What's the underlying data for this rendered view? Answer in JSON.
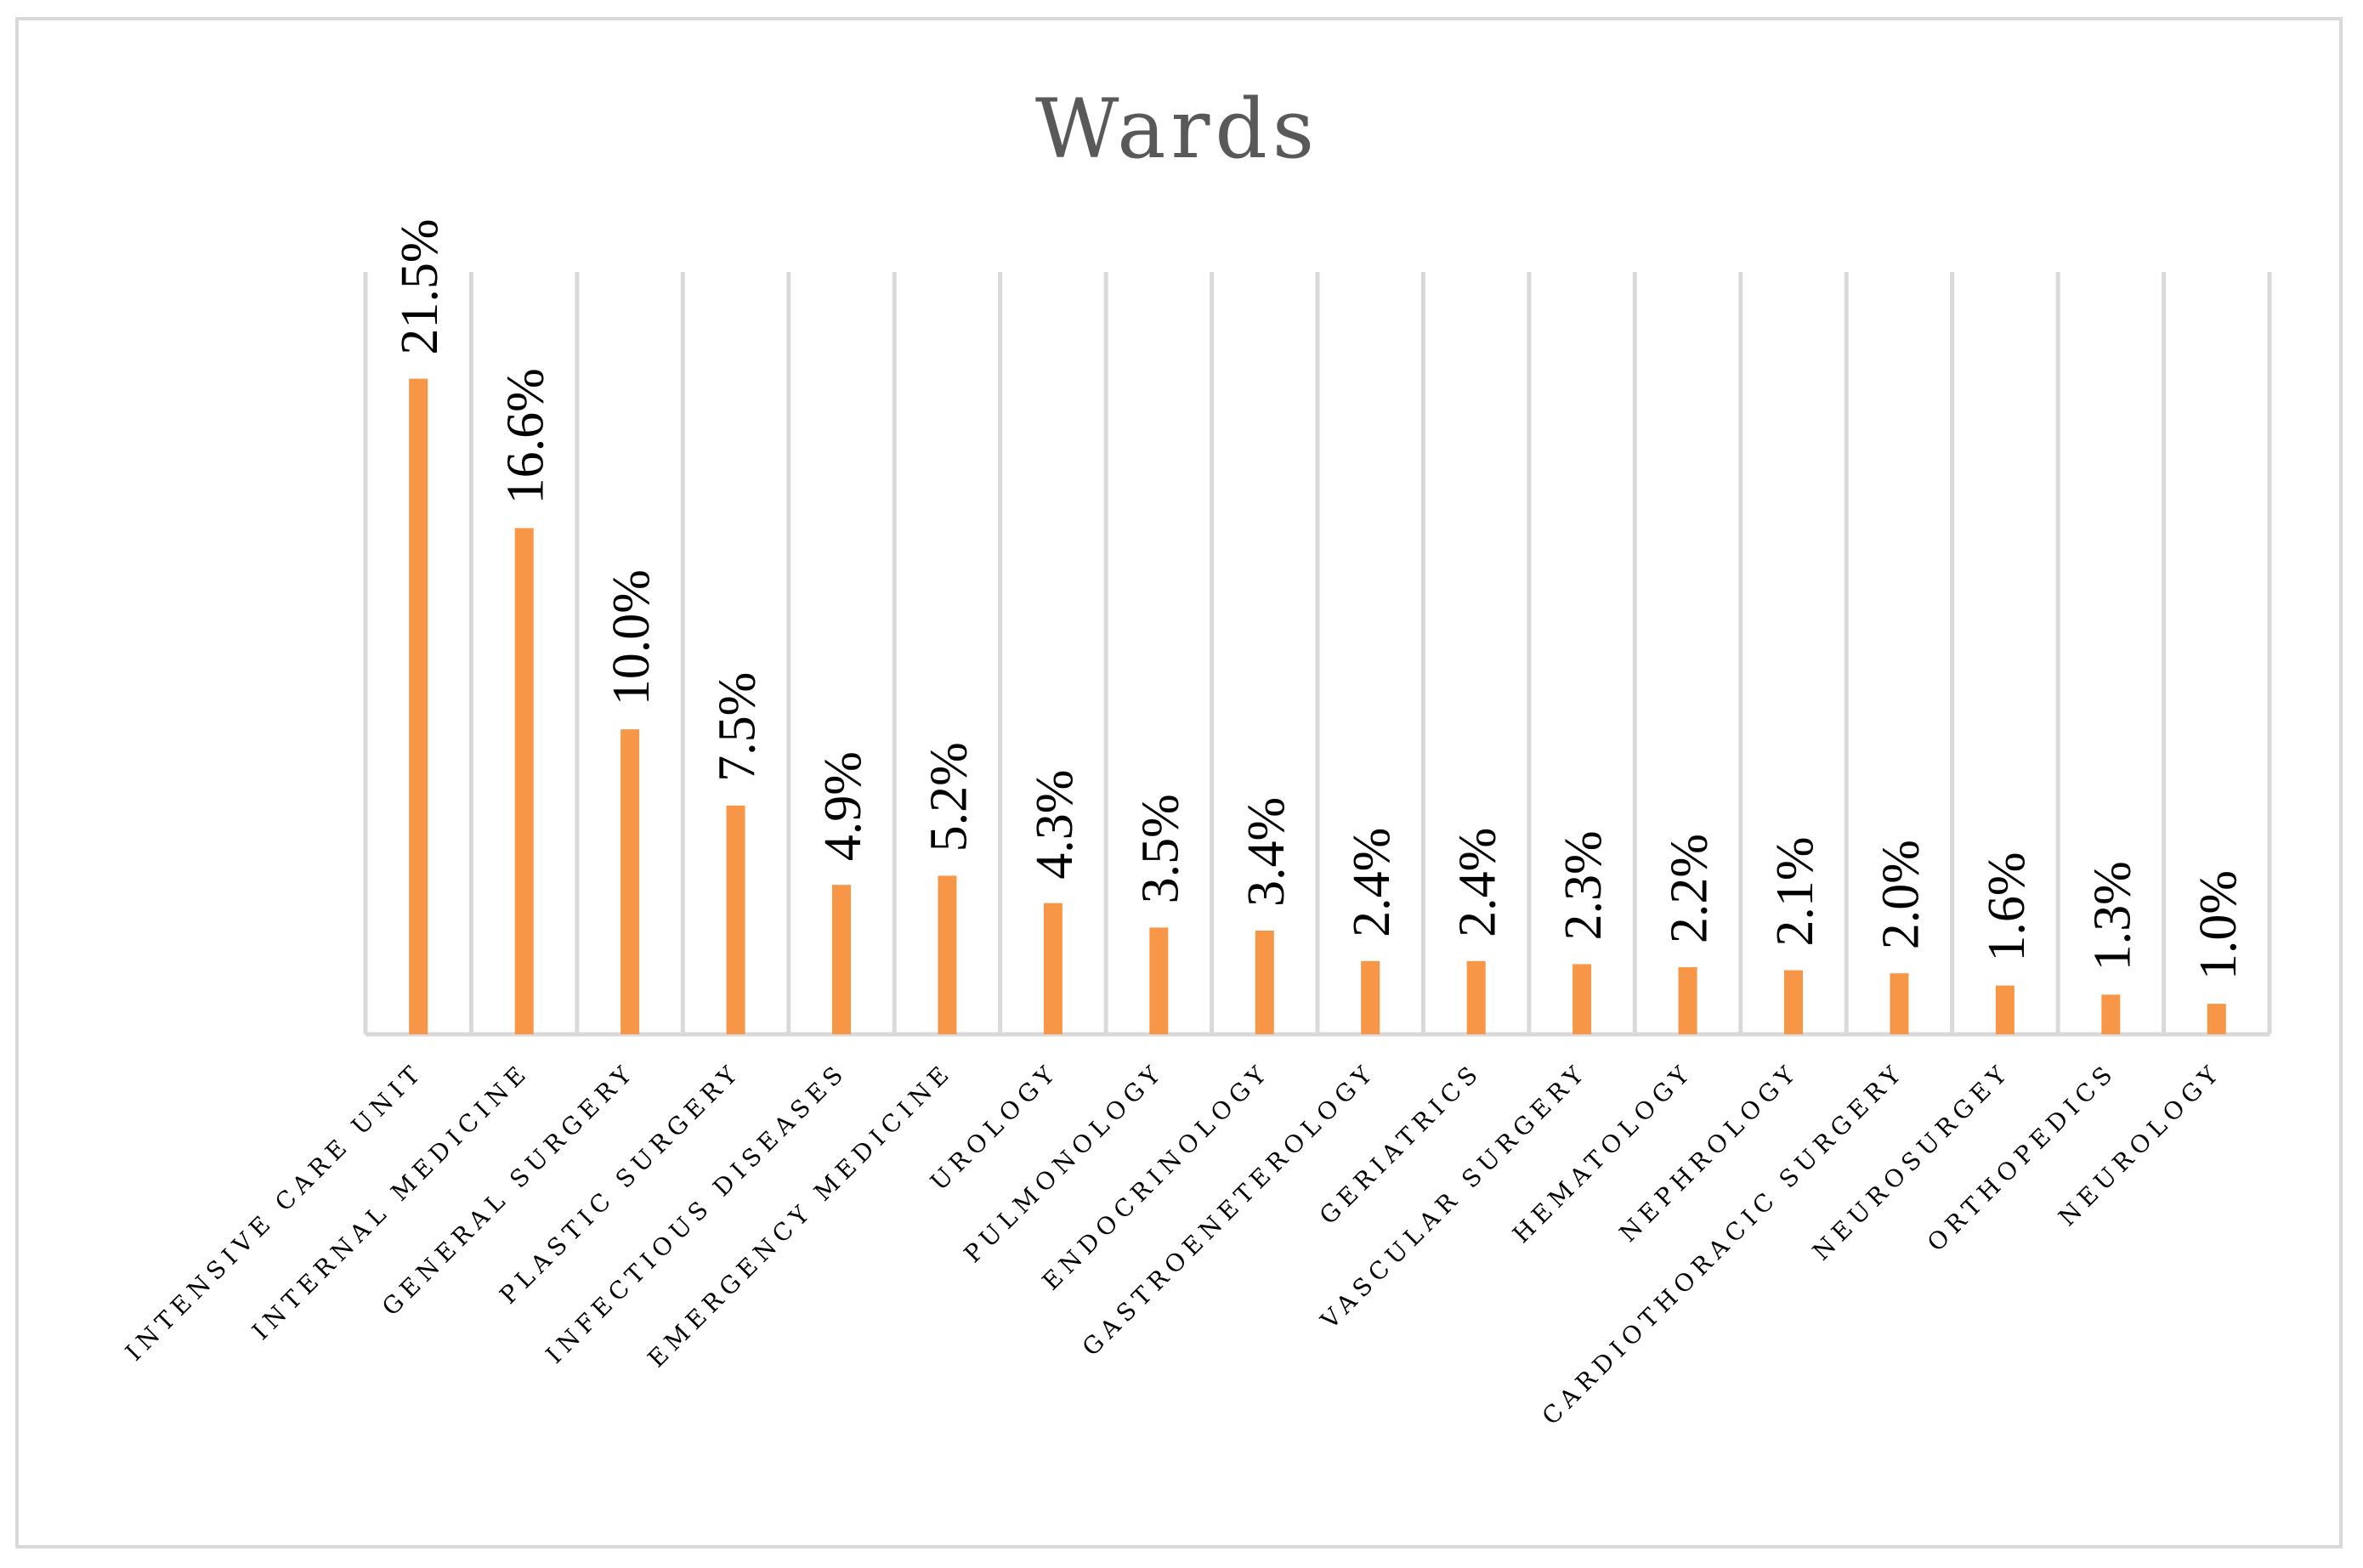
{
  "chart_data": {
    "type": "bar",
    "title": "Wards",
    "xlabel": "",
    "ylabel": "",
    "ylim": [
      0,
      25
    ],
    "grid": "vertical",
    "legend": "none",
    "color": "#f79646",
    "categories": [
      "INTENSIVE CARE UNIT",
      "INTERNAL MEDICINE",
      "GENERAL SURGERY",
      "PLASTIC SURGERY",
      "INFECTIOUS DISEASES",
      "EMERGENCY MEDICINE",
      "UROLOGY",
      "PULMONOLOGY",
      "ENDOCRINOLOGY",
      "GASTROENETEROLOGY",
      "GERIATRICS",
      "VASCULAR SURGERY",
      "HEMATOLOGY",
      "NEPHROLOGY",
      "CARDIOTHORACIC SURGERY",
      "NEUROSURGEY",
      "ORTHOPEDICS",
      "NEUROLOGY"
    ],
    "values": [
      21.5,
      16.6,
      10.0,
      7.5,
      4.9,
      5.2,
      4.3,
      3.5,
      3.4,
      2.4,
      2.4,
      2.3,
      2.2,
      2.1,
      2.0,
      1.6,
      1.3,
      1.0
    ],
    "data_labels": [
      "21.5%",
      "16.6%",
      "10.0%",
      "7.5%",
      "4.9%",
      "5.2%",
      "4.3%",
      "3.5%",
      "3.4%",
      "2.4%",
      "2.4%",
      "2.3%",
      "2.2%",
      "2.1%",
      "2.0%",
      "1.6%",
      "1.3%",
      "1.0%"
    ]
  }
}
